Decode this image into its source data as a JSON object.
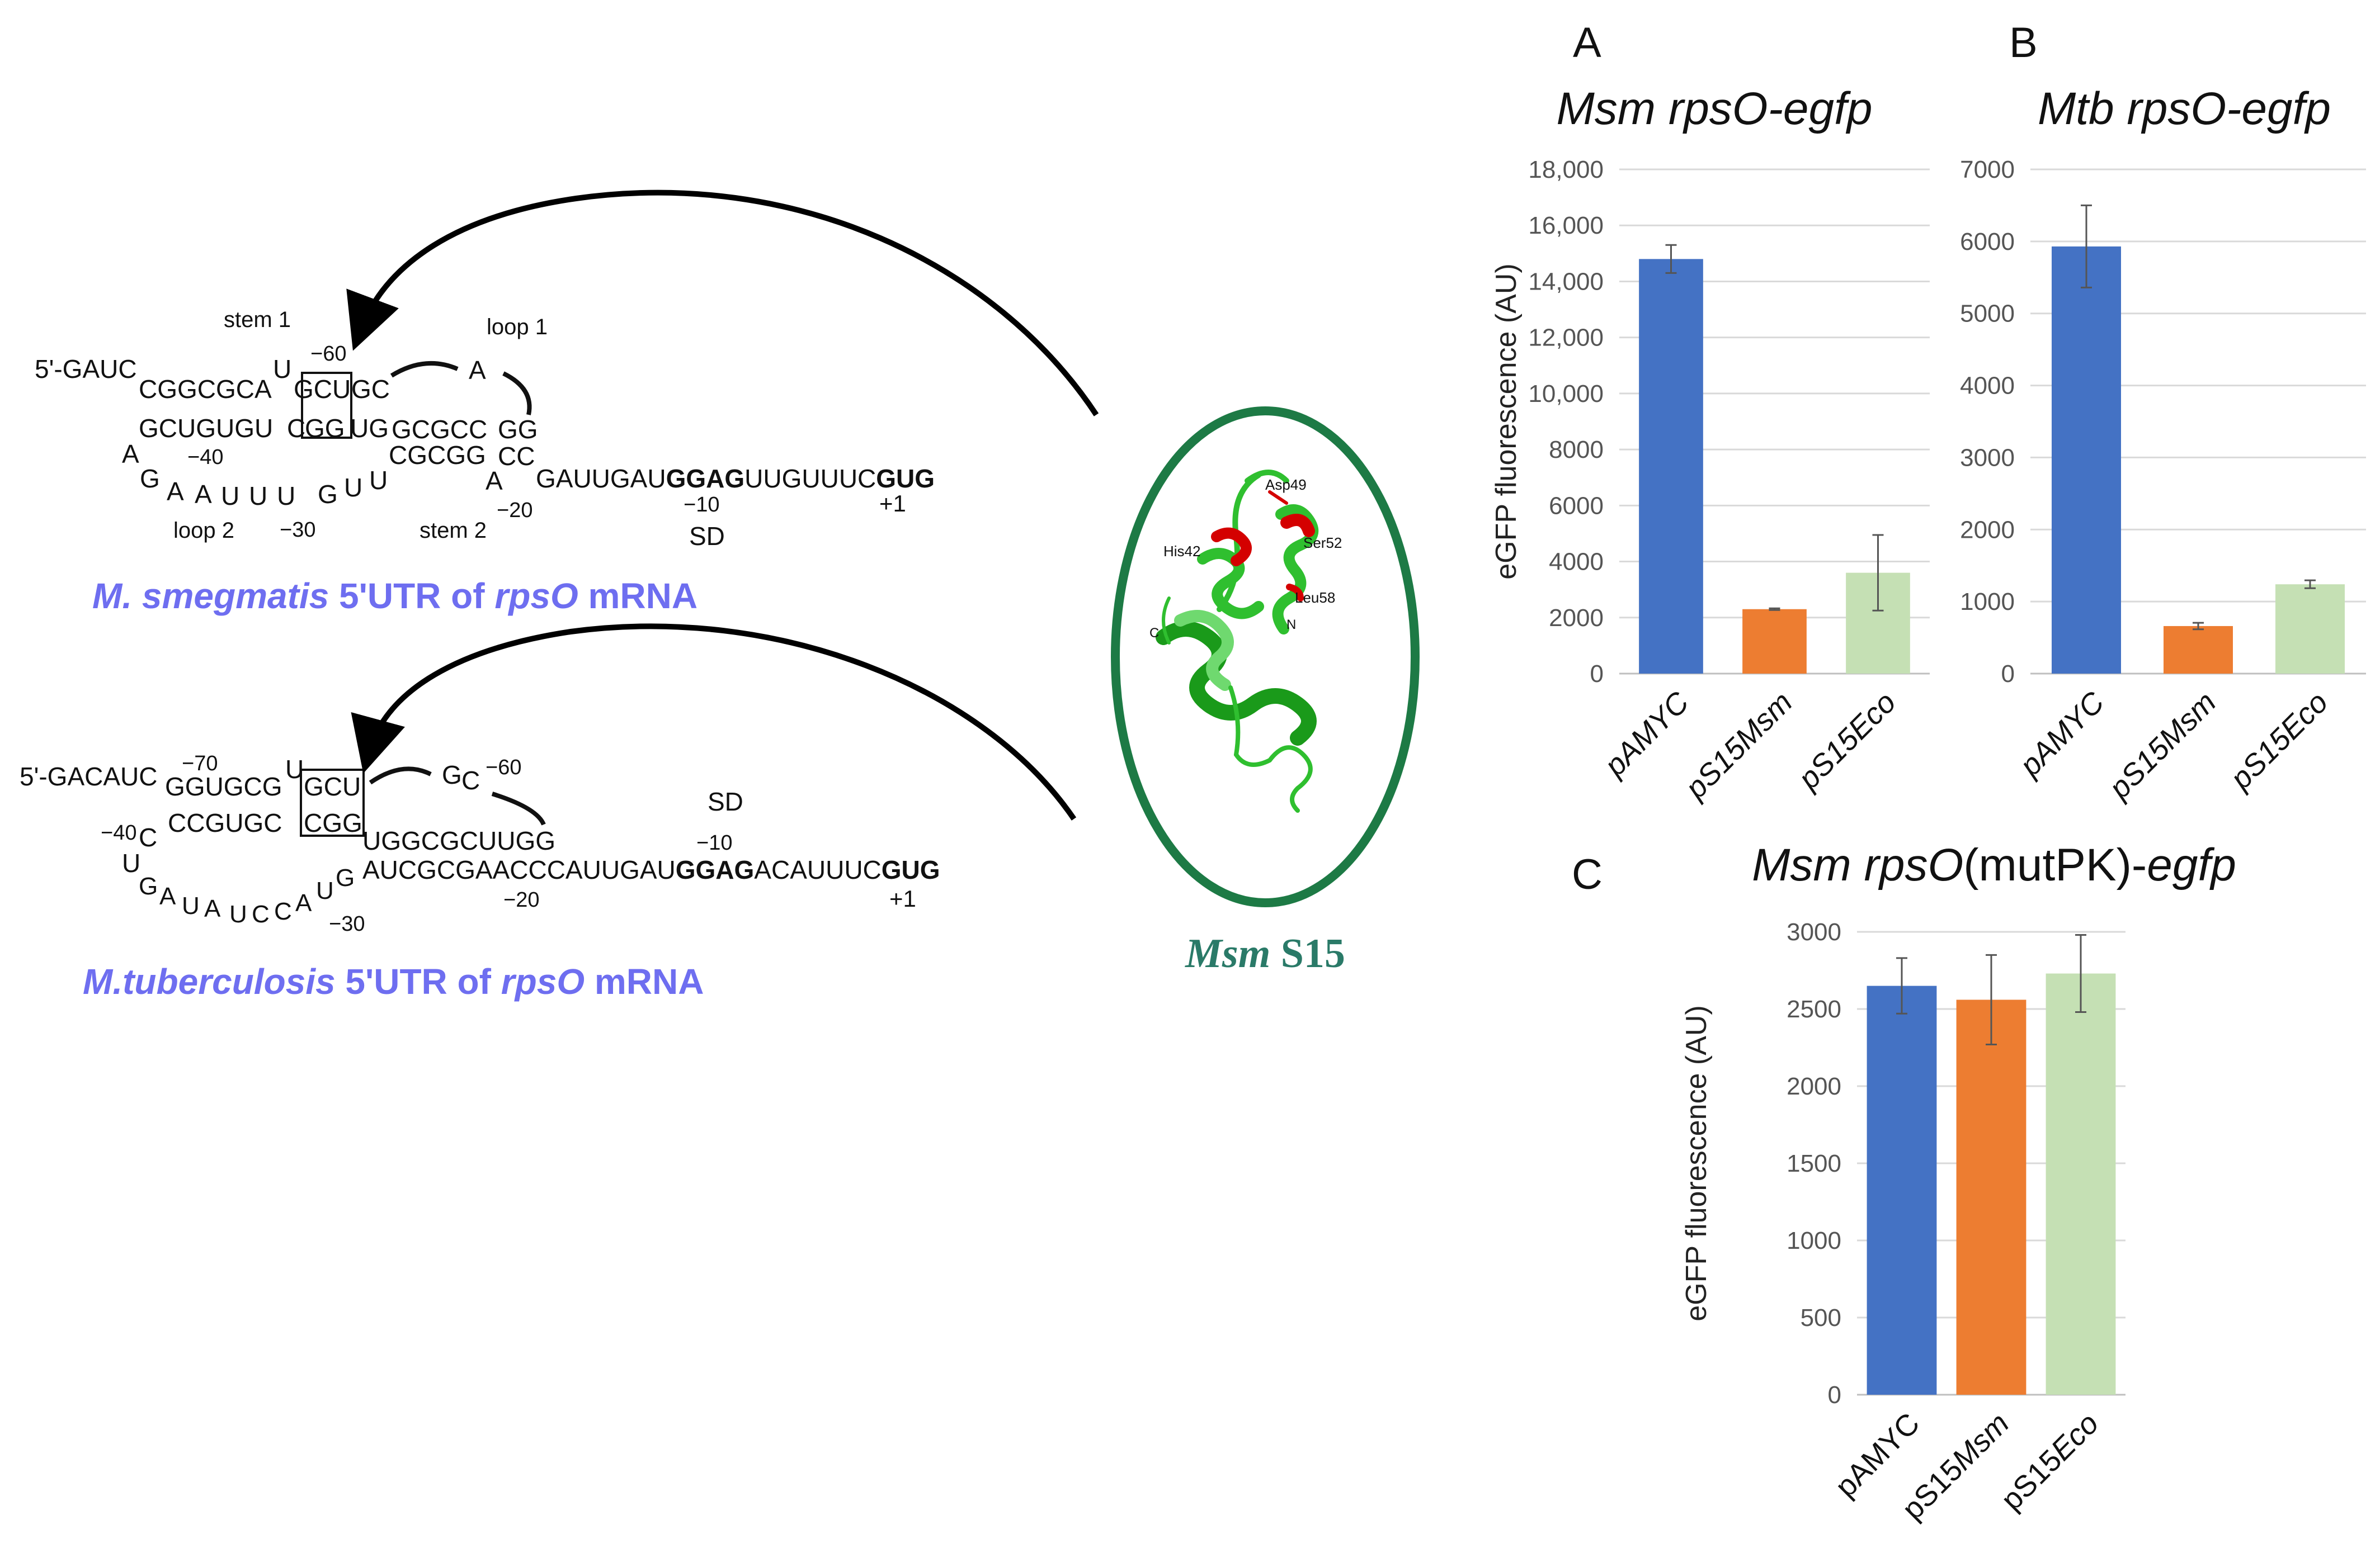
{
  "rna_msm": {
    "caption": {
      "italic1": "M. smegmatis",
      "plain1": " 5'UTR of ",
      "italic2": "rpsO",
      "plain2": " mRNA"
    },
    "labels": {
      "stem1": "stem 1",
      "loop1": "loop 1",
      "loop2": "loop 2",
      "stem2": "stem 2",
      "sd": "SD",
      "n60": "−60",
      "n40": "−40",
      "n30": "−30",
      "n20": "−20",
      "n10": "−10",
      "p1": "+1"
    },
    "seq": {
      "top_left": "5'-GAUC",
      "top_a": "CGGCGCA",
      "top_u": "U",
      "top_box": "GCU",
      "top_gc": "GC",
      "loop1_a": "A",
      "mid_left": "GCUGUGU",
      "mid_c": "C",
      "mid_box": "GG",
      "mid_right": "UG",
      "mid_gcgcc": "GCGCC",
      "mid_gg": "GG",
      "left_a": "A",
      "left_g": "G",
      "loop2_bases": [
        "A",
        "A",
        "U",
        "U",
        "U",
        "G",
        "U",
        "U"
      ],
      "cgcgg": "CGCGG",
      "cc": "CC",
      "a20": "A",
      "tail1": "GAUUGAU",
      "tail_ggag": "GGAG",
      "tail2": "UUGUUUC",
      "tail_gug": "GUG"
    }
  },
  "rna_mtb": {
    "caption": {
      "italic1": "M.tuberculosis",
      "plain1": " 5'UTR of ",
      "italic2": "rpsO",
      "plain2": " mRNA"
    },
    "labels": {
      "n70": "−70",
      "n60": "−60",
      "n40": "−40",
      "n30": "−30",
      "n20": "−20",
      "n10": "−10",
      "sd": "SD",
      "p1": "+1"
    },
    "seq": {
      "top_left": "5'-GACAUC",
      "top_ggugcg": "GGUGCG",
      "top_u": "U",
      "top_box": "GCU",
      "loop_g": "G",
      "loop_c": "C",
      "mid_ccgugc": "CCGUGC",
      "mid_box": "CGG",
      "mid_right": "UGGCGCUUGG",
      "left_c": "C",
      "left_u": "U",
      "bottom_bases": [
        "G",
        "A",
        "U",
        "A",
        "U",
        "C",
        "C",
        "A",
        "U",
        "G"
      ],
      "tail1": "AUCGCGAACCCAUUGAU",
      "tail_ggag": "GGAG",
      "tail2": "ACAUUUC",
      "tail_gug": "GUG"
    }
  },
  "protein": {
    "title_italic": "Msm",
    "title_plain": " S15",
    "residues": [
      "Asp49",
      "His42",
      "Ser52",
      "Leu58",
      "C",
      "N"
    ],
    "colors": {
      "ellipse": "#1d7a45",
      "helix": "#2fbf2f",
      "highlight": "#d40000"
    }
  },
  "chart_data": [
    {
      "panel": "A",
      "type": "bar",
      "title_italic": "Msm rpsO-egfp",
      "title_plain": "",
      "ylabel": "eGFP fluorescence (AU)",
      "ylim": [
        0,
        18000
      ],
      "yticks": [
        0,
        2000,
        4000,
        6000,
        8000,
        10000,
        12000,
        14000,
        16000,
        18000
      ],
      "ytick_labels": [
        "0",
        "2000",
        "4000",
        "6000",
        "8000",
        "10,000",
        "12,000",
        "14,000",
        "16,000",
        "18,000"
      ],
      "categories": [
        {
          "prefix": "pAMYC",
          "italic": ""
        },
        {
          "prefix": "pS15",
          "italic": "Msm"
        },
        {
          "prefix": "pS15",
          "italic": "Eco"
        }
      ],
      "cat_italic_style": "all",
      "values": [
        14800,
        2300,
        3600
      ],
      "errors": [
        500,
        30,
        1350
      ],
      "colors": [
        "#4472c4",
        "#ed7d31",
        "#c5e0b4"
      ]
    },
    {
      "panel": "B",
      "type": "bar",
      "title_italic": "Mtb rpsO-egfp",
      "title_plain": "",
      "ylabel": "",
      "ylim": [
        0,
        7000
      ],
      "yticks": [
        0,
        1000,
        2000,
        3000,
        4000,
        5000,
        6000,
        7000
      ],
      "ytick_labels": [
        "0",
        "1000",
        "2000",
        "3000",
        "4000",
        "5000",
        "6000",
        "7000"
      ],
      "categories": [
        {
          "prefix": "pAMYC",
          "italic": ""
        },
        {
          "prefix": "pS15",
          "italic": "Msm"
        },
        {
          "prefix": "pS15",
          "italic": "Eco"
        }
      ],
      "cat_italic_style": "all",
      "values": [
        5930,
        660,
        1240
      ],
      "errors": [
        570,
        45,
        55
      ],
      "colors": [
        "#4472c4",
        "#ed7d31",
        "#c5e0b4"
      ]
    },
    {
      "panel": "C",
      "type": "bar",
      "title_italic": "Msm rpsO",
      "title_plain": "(mutPK)-",
      "title_italic2": "egfp",
      "ylabel": "eGFP fluorescence (AU)",
      "ylim": [
        0,
        3000
      ],
      "yticks": [
        0,
        500,
        1000,
        1500,
        2000,
        2500,
        3000
      ],
      "ytick_labels": [
        "0",
        "500",
        "1000",
        "1500",
        "2000",
        "2500",
        "3000"
      ],
      "categories": [
        {
          "prefix": "pAMYC",
          "italic": ""
        },
        {
          "prefix": "pS15",
          "italic": "Msm"
        },
        {
          "prefix": "pS15",
          "italic": "Eco"
        }
      ],
      "cat_italic_style": "suffix",
      "values": [
        2650,
        2560,
        2730
      ],
      "errors": [
        180,
        290,
        250
      ],
      "colors": [
        "#4472c4",
        "#ed7d31",
        "#c5e0b4"
      ]
    }
  ]
}
